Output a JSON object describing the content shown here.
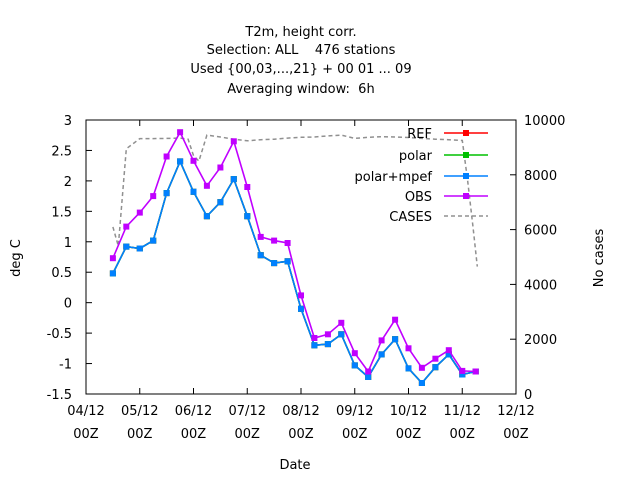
{
  "chart_data": {
    "type": "line",
    "title_lines": [
      "T2m, height corr.",
      "Selection: ALL    476 stations",
      "Used {00,03,...,21} + 00 01 ... 09",
      "Averaging window:  6h"
    ],
    "xlabel": "Date",
    "ylabel": "deg C",
    "y2label": "No cases",
    "x_ticks": [
      {
        "line1": "04/12",
        "line2": "00Z"
      },
      {
        "line1": "05/12",
        "line2": "00Z"
      },
      {
        "line1": "06/12",
        "line2": "00Z"
      },
      {
        "line1": "07/12",
        "line2": "00Z"
      },
      {
        "line1": "08/12",
        "line2": "00Z"
      },
      {
        "line1": "09/12",
        "line2": "00Z"
      },
      {
        "line1": "10/12",
        "line2": "00Z"
      },
      {
        "line1": "11/12",
        "line2": "00Z"
      },
      {
        "line1": "12/12",
        "line2": "00Z"
      }
    ],
    "xlim": [
      0,
      8
    ],
    "ylim": [
      -1.5,
      3
    ],
    "y_ticks": [
      "3",
      "2.5",
      "2",
      "1.5",
      "1",
      "0.5",
      "0",
      "-0.5",
      "-1",
      "-1.5"
    ],
    "y2lim": [
      0,
      10000
    ],
    "y2_ticks": [
      "10000",
      "8000",
      "6000",
      "4000",
      "2000",
      "0"
    ],
    "grid": false,
    "legend_position": "top-right",
    "x_days": [
      0.5,
      0.75,
      1.0,
      1.25,
      1.5,
      1.75,
      2.0,
      2.25,
      2.5,
      2.75,
      3.0,
      3.25,
      3.5,
      3.75,
      4.0,
      4.25,
      4.5,
      4.75,
      5.0,
      5.25,
      5.5,
      5.75,
      6.0,
      6.25,
      6.5,
      6.75,
      7.0,
      7.25
    ],
    "series": [
      {
        "name": "REF",
        "color": "#ff0000",
        "marker": "square",
        "values": [
          0.48,
          0.92,
          0.89,
          1.02,
          1.8,
          2.32,
          1.82,
          1.42,
          1.65,
          2.03,
          1.42,
          0.78,
          0.65,
          0.68,
          -0.1,
          -0.7,
          -0.68,
          -0.52,
          -1.03,
          -1.22,
          -0.85,
          -0.6,
          -1.08,
          -1.32,
          -1.06,
          -0.85,
          -1.18,
          -1.13
        ]
      },
      {
        "name": "polar",
        "color": "#00c000",
        "marker": "square",
        "values": [
          0.48,
          0.92,
          0.89,
          1.02,
          1.8,
          2.32,
          1.82,
          1.42,
          1.65,
          2.03,
          1.42,
          0.78,
          0.65,
          0.68,
          -0.1,
          -0.7,
          -0.68,
          -0.52,
          -1.03,
          -1.22,
          -0.85,
          -0.6,
          -1.08,
          -1.32,
          -1.06,
          -0.85,
          -1.18,
          -1.13
        ]
      },
      {
        "name": "polar+mpef",
        "color": "#0080ff",
        "marker": "square",
        "values": [
          0.48,
          0.92,
          0.89,
          1.02,
          1.8,
          2.32,
          1.82,
          1.42,
          1.65,
          2.03,
          1.42,
          0.78,
          0.65,
          0.68,
          -0.1,
          -0.7,
          -0.68,
          -0.52,
          -1.03,
          -1.22,
          -0.85,
          -0.6,
          -1.08,
          -1.32,
          -1.06,
          -0.85,
          -1.18,
          -1.13
        ]
      },
      {
        "name": "OBS",
        "color": "#c000ff",
        "marker": "square",
        "values": [
          0.73,
          1.25,
          1.48,
          1.75,
          2.4,
          2.8,
          2.33,
          1.92,
          2.22,
          2.65,
          1.9,
          1.08,
          1.02,
          0.98,
          0.12,
          -0.58,
          -0.52,
          -0.33,
          -0.83,
          -1.13,
          -0.62,
          -0.28,
          -0.75,
          -1.07,
          -0.92,
          -0.78,
          -1.12,
          -1.13
        ]
      }
    ],
    "cases_series": {
      "name": "CASES",
      "color": "#909090",
      "dash": "dashed",
      "axis": "right",
      "x": [
        0.5,
        0.6,
        0.75,
        1.0,
        1.25,
        1.5,
        1.75,
        1.9,
        2.0,
        2.1,
        2.25,
        2.5,
        2.75,
        3.0,
        3.25,
        3.5,
        3.75,
        4.0,
        4.25,
        4.5,
        4.75,
        5.0,
        5.25,
        5.5,
        5.75,
        6.0,
        6.25,
        6.5,
        6.75,
        7.0,
        7.1,
        7.2,
        7.28
      ],
      "values": [
        6100,
        5400,
        8950,
        9320,
        9320,
        9330,
        9340,
        9300,
        8700,
        8500,
        9450,
        9380,
        9300,
        9240,
        9280,
        9300,
        9340,
        9370,
        9380,
        9420,
        9450,
        9330,
        9370,
        9390,
        9380,
        9360,
        9330,
        9300,
        9280,
        9250,
        7800,
        6100,
        4650
      ]
    }
  }
}
